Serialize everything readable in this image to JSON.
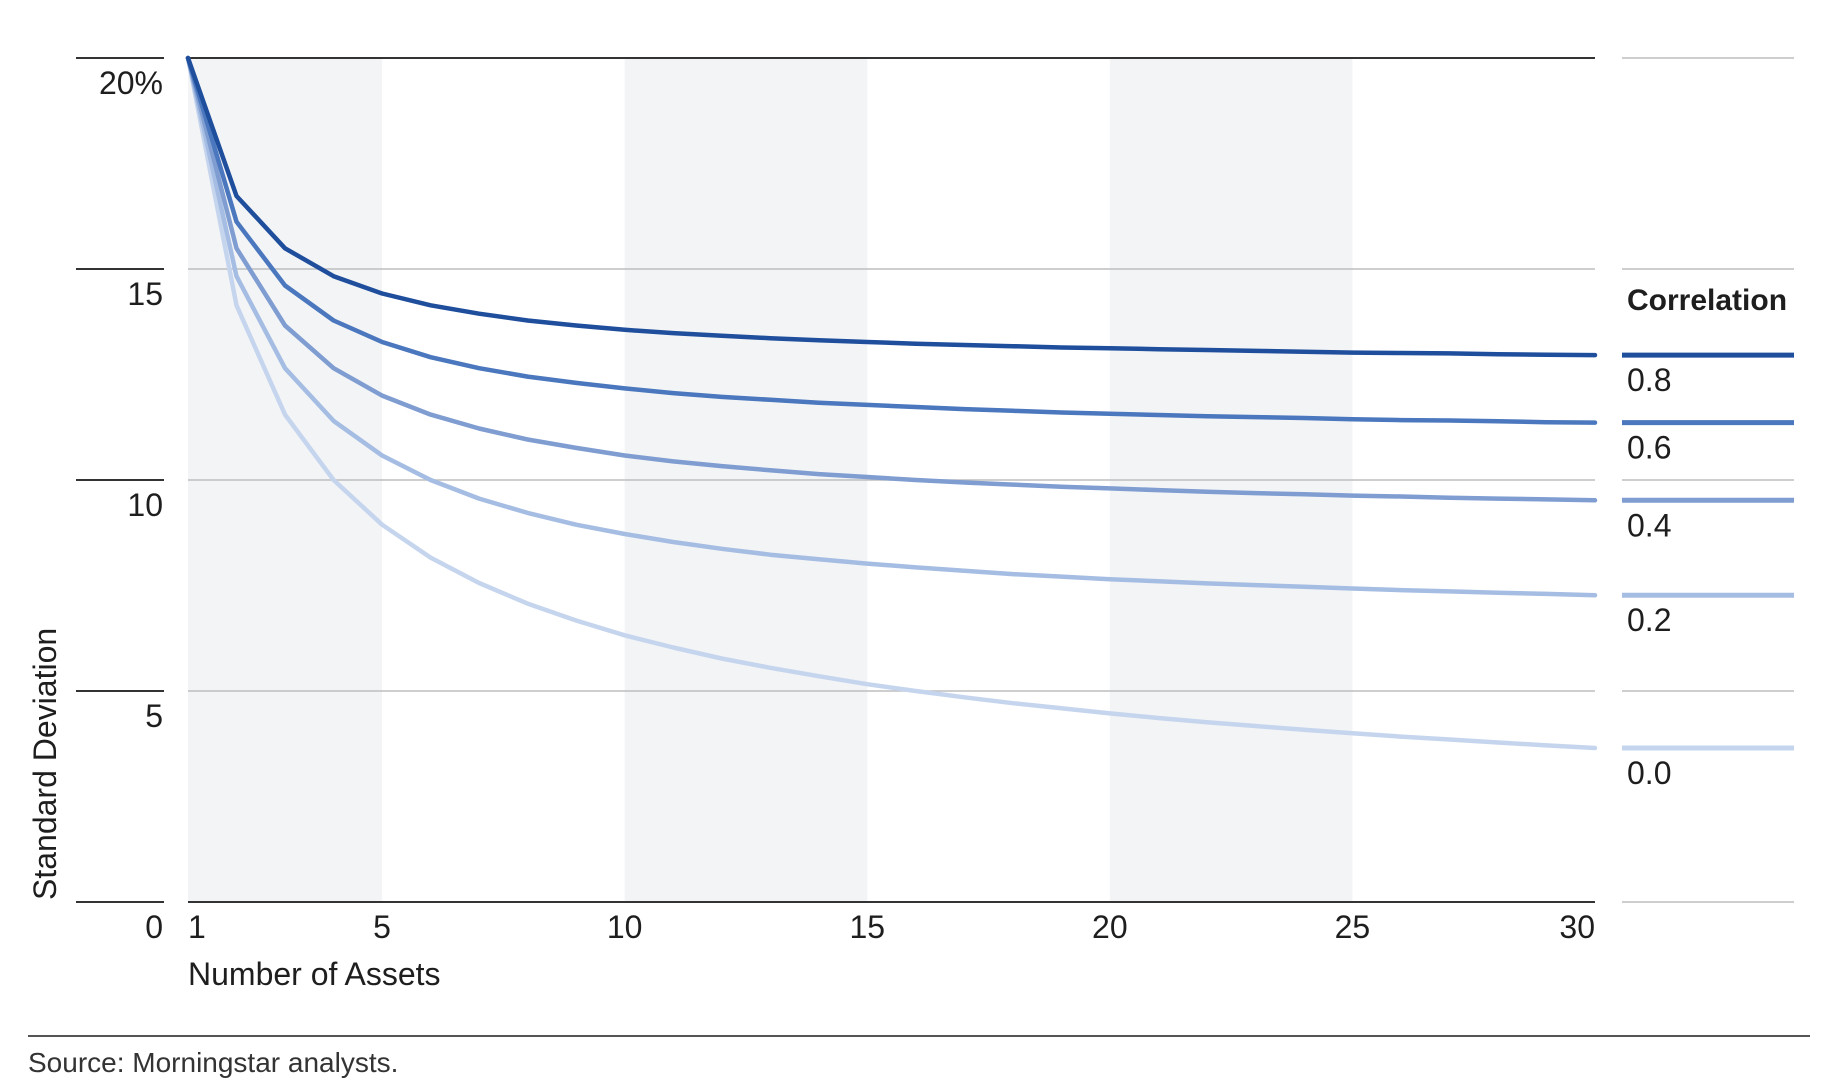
{
  "chart_data": {
    "type": "line",
    "xlabel": "Number of Assets",
    "ylabel": "Standard Deviation",
    "xlim": [
      1,
      30
    ],
    "ylim": [
      0,
      20
    ],
    "x_ticks": [
      "1",
      "5",
      "10",
      "15",
      "20",
      "25",
      "30"
    ],
    "y_ticks": [
      "0",
      "5",
      "10",
      "15",
      "20%"
    ],
    "grid": true,
    "shaded_x_bands": [
      [
        1,
        5
      ],
      [
        10,
        15
      ],
      [
        20,
        25
      ]
    ],
    "legend": {
      "title": "Correlation",
      "placement": "right"
    },
    "x": [
      1,
      2,
      3,
      4,
      5,
      6,
      7,
      8,
      9,
      10,
      11,
      12,
      13,
      14,
      15,
      16,
      17,
      18,
      19,
      20,
      21,
      22,
      23,
      24,
      25,
      26,
      27,
      28,
      29,
      30
    ],
    "series": [
      {
        "name": "0.8",
        "color": "#1f4e9c",
        "values": [
          20,
          16.73,
          15.49,
          14.83,
          14.42,
          14.14,
          13.94,
          13.78,
          13.66,
          13.56,
          13.48,
          13.42,
          13.36,
          13.31,
          13.27,
          13.23,
          13.2,
          13.17,
          13.14,
          13.12,
          13.1,
          13.08,
          13.06,
          13.04,
          13.02,
          13.01,
          13.0,
          12.98,
          12.97,
          12.96
        ]
      },
      {
        "name": "0.6",
        "color": "#4a77bd",
        "values": [
          20,
          16.12,
          14.61,
          13.78,
          13.27,
          12.91,
          12.65,
          12.45,
          12.3,
          12.17,
          12.06,
          11.97,
          11.9,
          11.83,
          11.78,
          11.73,
          11.68,
          11.64,
          11.6,
          11.57,
          11.54,
          11.51,
          11.49,
          11.47,
          11.44,
          11.42,
          11.41,
          11.39,
          11.37,
          11.36
        ]
      },
      {
        "name": "0.4",
        "color": "#7f9dd1",
        "values": [
          20,
          15.49,
          13.66,
          12.65,
          12.0,
          11.55,
          11.22,
          10.96,
          10.76,
          10.58,
          10.44,
          10.33,
          10.23,
          10.14,
          10.07,
          10.0,
          9.94,
          9.89,
          9.84,
          9.8,
          9.76,
          9.72,
          9.69,
          9.66,
          9.63,
          9.61,
          9.58,
          9.56,
          9.54,
          9.52
        ]
      },
      {
        "name": "0.2",
        "color": "#a5bde2",
        "values": [
          20,
          14.83,
          12.65,
          11.4,
          10.58,
          10.0,
          9.56,
          9.22,
          8.94,
          8.72,
          8.53,
          8.37,
          8.23,
          8.12,
          8.02,
          7.93,
          7.85,
          7.77,
          7.71,
          7.65,
          7.6,
          7.55,
          7.51,
          7.47,
          7.43,
          7.39,
          7.36,
          7.33,
          7.3,
          7.27
        ]
      },
      {
        "name": "0.0",
        "color": "#c6d5ee",
        "values": [
          20,
          14.14,
          11.55,
          10.0,
          8.94,
          8.16,
          7.56,
          7.07,
          6.67,
          6.32,
          6.03,
          5.77,
          5.55,
          5.35,
          5.16,
          5.0,
          4.85,
          4.71,
          4.59,
          4.47,
          4.36,
          4.26,
          4.17,
          4.08,
          4.0,
          3.92,
          3.85,
          3.78,
          3.71,
          3.65
        ]
      }
    ]
  },
  "source": "Source: Morningstar analysts."
}
